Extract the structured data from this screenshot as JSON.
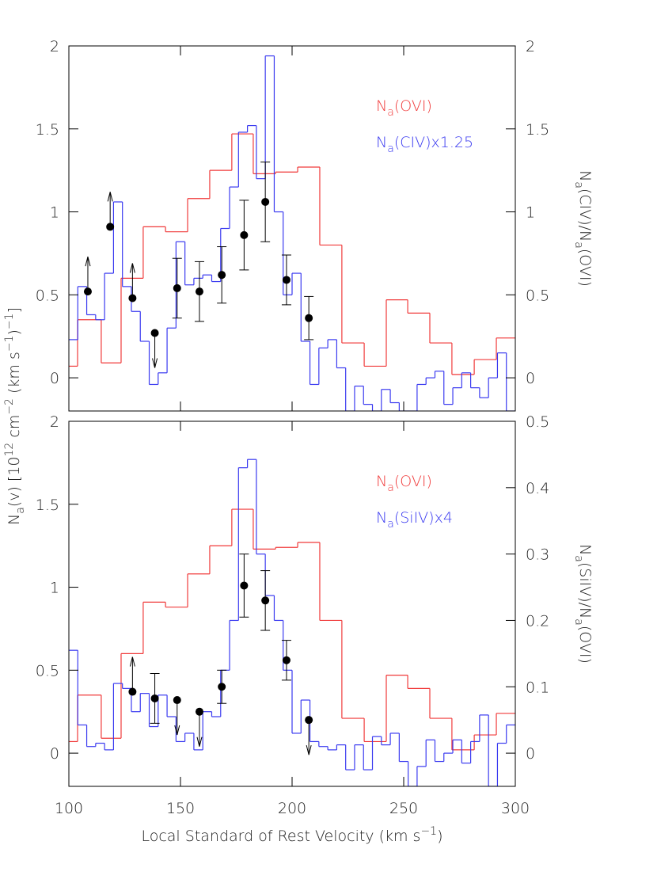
{
  "chart_data": [
    {
      "type": "step",
      "ylabel": [
        {
          "text": "N"
        },
        {
          "sub": "a"
        },
        {
          "text": "(v) [10"
        },
        {
          "sup": "12"
        },
        {
          "text": " cm"
        },
        {
          "sup": "−2"
        },
        {
          "text": " (km s"
        },
        {
          "sup": "−1"
        },
        {
          "text": ")"
        },
        {
          "sup": "−1"
        },
        {
          "text": "]"
        }
      ],
      "y2label": [
        {
          "text": "N"
        },
        {
          "sub": "a"
        },
        {
          "text": "(CIV)/N"
        },
        {
          "sub": "a"
        },
        {
          "text": "(OVI)"
        }
      ],
      "xlim": [
        100,
        300
      ],
      "xticks": [
        100,
        150,
        200,
        250,
        300
      ],
      "show_xtick_labels": false,
      "ylim": [
        -0.2,
        2
      ],
      "yticks": [
        0,
        0.5,
        1,
        1.5,
        2
      ],
      "y2lim": [
        -0.2,
        2
      ],
      "y2ticks": [
        0,
        0.5,
        1,
        1.5,
        2
      ],
      "series": [
        {
          "name": [
            {
              "text": "N"
            },
            {
              "sub": "a"
            },
            {
              "text": "(OVI)"
            }
          ],
          "color": "#f03a3a",
          "bins": [
            100,
            103.9,
            114.5,
            123.4,
            133.3,
            143.3,
            153.2,
            163.1,
            173,
            182.6,
            192.6,
            202.5,
            212.4,
            222.3,
            232.3,
            242.2,
            251.8,
            261.7,
            271.6,
            281.6,
            291.5,
            300
          ],
          "values": [
            0.07,
            0.35,
            0.09,
            0.6,
            0.91,
            0.88,
            1.08,
            1.25,
            1.47,
            1.23,
            1.24,
            1.27,
            0.8,
            0.21,
            0.07,
            0.47,
            0.39,
            0.21,
            0.02,
            0.11,
            0.24
          ]
        },
        {
          "name": [
            {
              "text": "N"
            },
            {
              "sub": "a"
            },
            {
              "text": "(CIV)x1.25"
            }
          ],
          "color": "#3a3af0",
          "bins": [
            100,
            104,
            108,
            112,
            116,
            120,
            124,
            128,
            132,
            136,
            140,
            144,
            148,
            152,
            156,
            160,
            164,
            168,
            172,
            176,
            180,
            184,
            188,
            192,
            196,
            200,
            204,
            208,
            212,
            216,
            220,
            224,
            228,
            232,
            236,
            240,
            244,
            248,
            252,
            256,
            260,
            264,
            268,
            272,
            276,
            280,
            284,
            288,
            292,
            296,
            300
          ],
          "values": [
            0.23,
            0.55,
            0.38,
            0.35,
            0.63,
            1.06,
            0.55,
            0.4,
            0.22,
            -0.04,
            0.03,
            0.3,
            0.82,
            0.56,
            0.6,
            0.62,
            0.58,
            0.9,
            1.15,
            1.48,
            1.52,
            1.2,
            1.94,
            1.0,
            0.5,
            0.63,
            0.22,
            -0.04,
            0.18,
            0.23,
            0.06,
            -0.2,
            -0.05,
            -0.16,
            -0.2,
            -0.07,
            -0.15,
            -0.2,
            -0.2,
            -0.04,
            0.0,
            0.04,
            -0.16,
            -0.06,
            0.03,
            -0.06,
            -0.12,
            0.0,
            0.15,
            -0.2
          ]
        }
      ],
      "points": {
        "color": "#000000",
        "x": [
          108.5,
          118.5,
          128.5,
          138.5,
          148.5,
          158.5,
          168.5,
          178.5,
          188,
          197.5,
          207.5
        ],
        "y": [
          0.52,
          0.91,
          0.48,
          0.27,
          0.54,
          0.52,
          0.62,
          0.86,
          1.06,
          0.59,
          0.36
        ],
        "err": [
          null,
          null,
          null,
          null,
          0.18,
          0.18,
          0.17,
          0.21,
          0.24,
          0.15,
          0.13
        ],
        "limit": [
          "lower",
          "lower",
          "lower",
          "upper",
          null,
          null,
          null,
          null,
          null,
          null,
          null
        ]
      }
    },
    {
      "type": "step",
      "xlabel": [
        {
          "text": "Local Standard of Rest Velocity (km s"
        },
        {
          "sup": "−1"
        },
        {
          "text": ")"
        }
      ],
      "y2label": [
        {
          "text": "N"
        },
        {
          "sub": "a"
        },
        {
          "text": "(SiIV)/N"
        },
        {
          "sub": "a"
        },
        {
          "text": "(OVI)"
        }
      ],
      "xlim": [
        100,
        300
      ],
      "xticks": [
        100,
        150,
        200,
        250,
        300
      ],
      "show_xtick_labels": true,
      "ylim": [
        -0.2,
        2
      ],
      "yticks": [
        0,
        0.5,
        1,
        1.5,
        2
      ],
      "y2lim": [
        -0.05,
        0.5
      ],
      "y2ticks": [
        0,
        0.1,
        0.2,
        0.3,
        0.4,
        0.5
      ],
      "series": [
        {
          "name": [
            {
              "text": "N"
            },
            {
              "sub": "a"
            },
            {
              "text": "(OVI)"
            }
          ],
          "color": "#f03a3a",
          "bins": [
            100,
            103.9,
            114.5,
            123.4,
            133.3,
            143.3,
            153.2,
            163.1,
            173,
            182.6,
            192.6,
            202.5,
            212.4,
            222.3,
            232.3,
            242.2,
            251.8,
            261.7,
            271.6,
            281.6,
            291.5,
            300
          ],
          "values": [
            0.07,
            0.35,
            0.09,
            0.6,
            0.91,
            0.88,
            1.08,
            1.25,
            1.47,
            1.23,
            1.24,
            1.27,
            0.8,
            0.21,
            0.07,
            0.47,
            0.39,
            0.21,
            0.02,
            0.11,
            0.24
          ]
        },
        {
          "name": [
            {
              "text": "N"
            },
            {
              "sub": "a"
            },
            {
              "text": "(SiIV)x4"
            }
          ],
          "color": "#3a3af0",
          "bins": [
            100,
            104,
            108,
            112,
            116,
            120,
            124,
            128,
            132,
            136,
            140,
            144,
            148,
            152,
            156,
            160,
            164,
            168,
            172,
            176,
            180,
            184,
            188,
            192,
            196,
            200,
            204,
            208,
            212,
            216,
            220,
            224,
            228,
            232,
            236,
            240,
            244,
            248,
            252,
            256,
            260,
            264,
            268,
            272,
            276,
            280,
            284,
            288,
            292,
            296,
            300
          ],
          "values": [
            0.62,
            0.17,
            0.04,
            0.06,
            0.02,
            0.42,
            0.39,
            0.25,
            0.36,
            0.16,
            0.35,
            0.22,
            0.07,
            0.12,
            0.02,
            0.25,
            0.22,
            0.5,
            0.8,
            1.72,
            1.77,
            1.2,
            0.95,
            0.8,
            0.5,
            0.12,
            0.32,
            0.07,
            0.04,
            0.02,
            0.05,
            -0.1,
            0.05,
            -0.1,
            0.1,
            0.05,
            0.12,
            -0.05,
            -0.2,
            -0.08,
            0.08,
            -0.05,
            0.0,
            0.08,
            -0.06,
            0.07,
            0.23,
            -0.2,
            0.06,
            0.17
          ]
        }
      ],
      "points": {
        "color": "#000000",
        "x": [
          128.5,
          138.5,
          148.5,
          158.5,
          168.5,
          178.5,
          188,
          197.5,
          207.5
        ],
        "y": [
          0.37,
          0.33,
          0.32,
          0.25,
          0.4,
          1.01,
          0.92,
          0.56,
          0.2
        ],
        "err": [
          null,
          0.15,
          null,
          null,
          0.1,
          0.19,
          0.18,
          0.12,
          null
        ],
        "limit": [
          "lower",
          null,
          "upper",
          "upper",
          null,
          null,
          null,
          null,
          "upper"
        ]
      }
    }
  ]
}
